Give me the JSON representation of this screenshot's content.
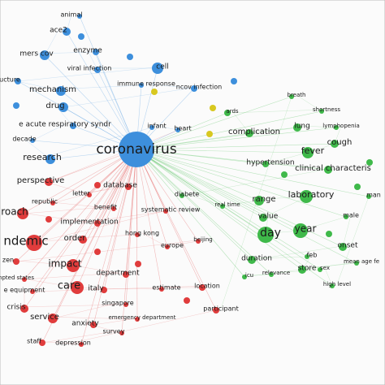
{
  "nodes": [
    {
      "label": "coronavirus",
      "color": "#3d8fdc"
    },
    {
      "label": "animal",
      "color": "#3d8fdc"
    },
    {
      "label": "ace2",
      "color": "#3d8fdc"
    },
    {
      "label": "mers cov",
      "color": "#3d8fdc"
    },
    {
      "label": "enzyme",
      "color": "#3d8fdc"
    },
    {
      "label": "viral infection",
      "color": "#3d8fdc"
    },
    {
      "label": "cell",
      "color": "#3d8fdc"
    },
    {
      "label": "ucture",
      "color": "#3d8fdc"
    },
    {
      "label": "mechanism",
      "color": "#3d8fdc"
    },
    {
      "label": "immune response",
      "color": "#3d8fdc"
    },
    {
      "label": "ncov infection",
      "color": "#3d8fdc"
    },
    {
      "label": "drug",
      "color": "#3d8fdc"
    },
    {
      "label": "e acute respiratory syndr",
      "color": "#3d8fdc"
    },
    {
      "label": "decade",
      "color": "#3d8fdc"
    },
    {
      "label": "research",
      "color": "#3d8fdc"
    },
    {
      "label": "infant",
      "color": "#3d8fdc"
    },
    {
      "label": "heart",
      "color": "#3d8fdc"
    },
    {
      "label": "perspective",
      "color": "#e03c3c"
    },
    {
      "label": "letter",
      "color": "#e03c3c"
    },
    {
      "label": "database",
      "color": "#e03c3c"
    },
    {
      "label": "republic",
      "color": "#e03c3c"
    },
    {
      "label": "benefit",
      "color": "#e03c3c"
    },
    {
      "label": "roach",
      "color": "#e03c3c"
    },
    {
      "label": "implementation",
      "color": "#e03c3c"
    },
    {
      "label": "systematic review",
      "color": "#e03c3c"
    },
    {
      "label": "ndemic",
      "color": "#e03c3c"
    },
    {
      "label": "order",
      "color": "#e03c3c"
    },
    {
      "label": "hong kong",
      "color": "#e03c3c"
    },
    {
      "label": "europe",
      "color": "#e03c3c"
    },
    {
      "label": "beijing",
      "color": "#e03c3c"
    },
    {
      "label": "zen",
      "color": "#e03c3c"
    },
    {
      "label": "impact",
      "color": "#e03c3c"
    },
    {
      "label": "department",
      "color": "#e03c3c"
    },
    {
      "label": "npted states",
      "color": "#e03c3c"
    },
    {
      "label": "care",
      "color": "#e03c3c"
    },
    {
      "label": "italy",
      "color": "#e03c3c"
    },
    {
      "label": "estimate",
      "color": "#e03c3c"
    },
    {
      "label": "location",
      "color": "#e03c3c"
    },
    {
      "label": "e equipment",
      "color": "#e03c3c"
    },
    {
      "label": "crisis",
      "color": "#e03c3c"
    },
    {
      "label": "singapore",
      "color": "#e03c3c"
    },
    {
      "label": "service",
      "color": "#e03c3c"
    },
    {
      "label": "emergency department",
      "color": "#e03c3c"
    },
    {
      "label": "anxiety",
      "color": "#e03c3c"
    },
    {
      "label": "survey",
      "color": "#e03c3c"
    },
    {
      "label": "staff",
      "color": "#e03c3c"
    },
    {
      "label": "depression",
      "color": "#e03c3c"
    },
    {
      "label": "participant",
      "color": "#e03c3c"
    },
    {
      "label": "breath",
      "color": "#3fb94a"
    },
    {
      "label": "shortness",
      "color": "#3fb94a"
    },
    {
      "label": "ards",
      "color": "#3fb94a"
    },
    {
      "label": "complication",
      "color": "#3fb94a"
    },
    {
      "label": "lung",
      "color": "#3fb94a"
    },
    {
      "label": "lymphopenia",
      "color": "#3fb94a"
    },
    {
      "label": "cough",
      "color": "#3fb94a"
    },
    {
      "label": "fever",
      "color": "#3fb94a"
    },
    {
      "label": "hypertension",
      "color": "#3fb94a"
    },
    {
      "label": "clinical characteris",
      "color": "#3fb94a"
    },
    {
      "label": "diabete",
      "color": "#3fb94a"
    },
    {
      "label": "real time",
      "color": "#3fb94a"
    },
    {
      "label": "range",
      "color": "#3fb94a"
    },
    {
      "label": "laboratory",
      "color": "#3fb94a"
    },
    {
      "label": "value",
      "color": "#3fb94a"
    },
    {
      "label": "day",
      "color": "#3fb94a"
    },
    {
      "label": "year",
      "color": "#3fb94a"
    },
    {
      "label": "male",
      "color": "#3fb94a"
    },
    {
      "label": "onset",
      "color": "#3fb94a"
    },
    {
      "label": "duration",
      "color": "#3fb94a"
    },
    {
      "label": "feb",
      "color": "#3fb94a"
    },
    {
      "label": "store",
      "color": "#3fb94a"
    },
    {
      "label": "mean age fe",
      "color": "#3fb94a"
    },
    {
      "label": "icu",
      "color": "#3fb94a"
    },
    {
      "label": "relevance",
      "color": "#3fb94a"
    },
    {
      "label": "sex",
      "color": "#3fb94a"
    },
    {
      "label": "high level",
      "color": "#3fb94a"
    },
    {
      "label": "man",
      "color": "#3fb94a"
    }
  ]
}
